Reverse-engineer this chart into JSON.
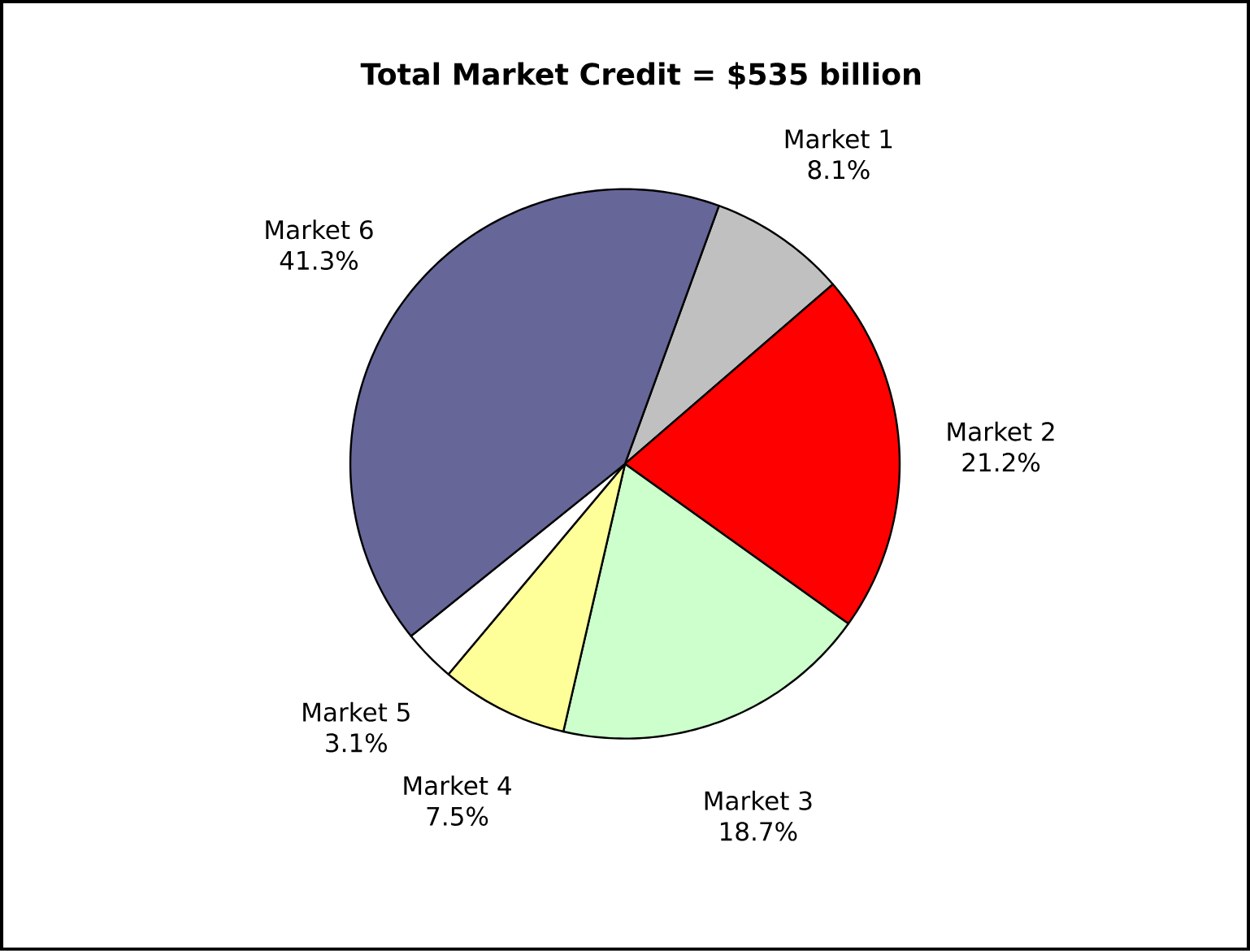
{
  "chart_data": {
    "type": "pie",
    "title": "Total Market Credit = $535 billion",
    "categories": [
      "Market 1",
      "Market 2",
      "Market 3",
      "Market 4",
      "Market 5",
      "Market 6"
    ],
    "values": [
      8.1,
      21.2,
      18.7,
      7.5,
      3.1,
      41.3
    ],
    "value_labels": [
      "8.1%",
      "21.2%",
      "18.7%",
      "7.5%",
      "3.1%",
      "41.3%"
    ],
    "colors": [
      "#c0c0c0",
      "#ff0000",
      "#ccffcc",
      "#ffff99",
      "#ffffff",
      "#666699"
    ]
  }
}
